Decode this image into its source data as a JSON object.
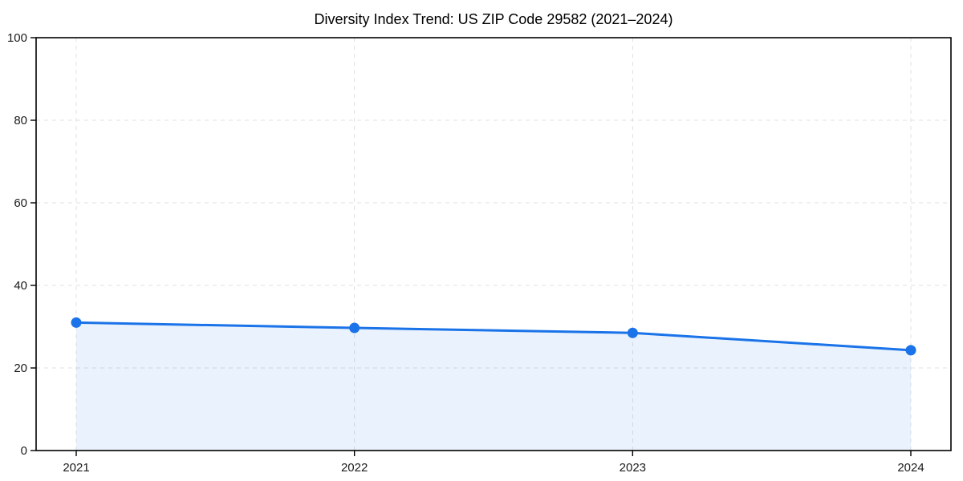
{
  "chart_data": {
    "type": "area",
    "title": "Diversity Index Trend: US ZIP Code 29582 (2021–2024)",
    "categories": [
      "2021",
      "2022",
      "2023",
      "2024"
    ],
    "series": [
      {
        "name": "Diversity Index",
        "values": [
          31.0,
          29.7,
          28.5,
          24.3
        ]
      }
    ],
    "xlabel": "",
    "ylabel": "",
    "ylim": [
      0,
      100
    ],
    "yticks": [
      0,
      20,
      40,
      60,
      80,
      100
    ],
    "grid": true,
    "grid_style": "dashed",
    "legend": "none",
    "marker": "circle",
    "colors": {
      "line": "#1a73e8",
      "marker": "#1a73e8",
      "fill": "#1a73e8",
      "fill_opacity": 0.09,
      "grid": "#e0e0e0",
      "axis": "#000000",
      "tick_label": "#1a1a1a",
      "title": "#000000",
      "background": "#ffffff"
    }
  }
}
